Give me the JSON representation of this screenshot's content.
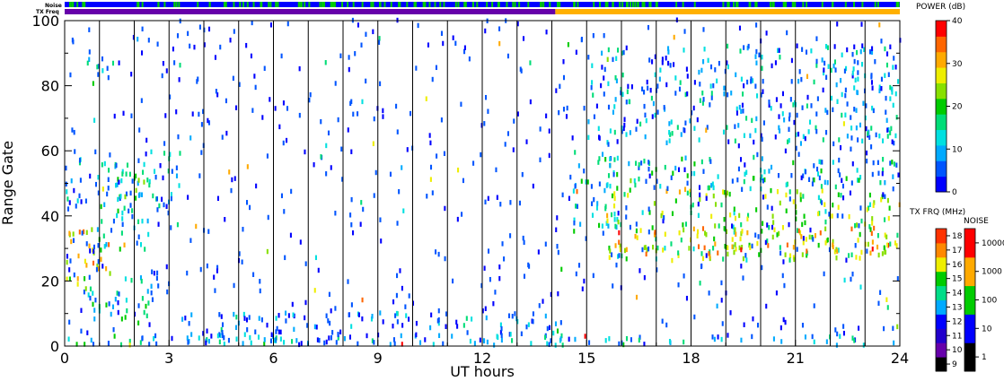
{
  "chart_data": {
    "type": "heatmap",
    "title": "",
    "xlabel": "UT hours",
    "ylabel": "Range Gate",
    "xlim": [
      0,
      24
    ],
    "ylim": [
      0,
      100
    ],
    "x_ticks": [
      0,
      3,
      6,
      9,
      12,
      15,
      18,
      21,
      24
    ],
    "y_ticks": [
      0,
      20,
      40,
      60,
      80,
      100
    ],
    "top_bars": [
      {
        "label": "Noise",
        "base_color": "#0000ff",
        "flecks_color": "#00cc00",
        "flecks_until_hour": 24
      },
      {
        "label": "TX Freq",
        "segments": [
          {
            "from": 0,
            "to": 14.1,
            "color": "#6600aa"
          },
          {
            "from": 14.1,
            "to": 24,
            "color": "#ffb000"
          }
        ]
      }
    ],
    "colorbars": [
      {
        "title": "POWER (dB)",
        "min": 0,
        "max": 40,
        "ticks": [
          "0",
          "10",
          "20",
          "30",
          "40"
        ],
        "colors": [
          "#0000ff",
          "#0055ff",
          "#00aaff",
          "#00e0e0",
          "#00dd77",
          "#00cc00",
          "#88e000",
          "#eeee00",
          "#ffaa00",
          "#ff6600",
          "#ff0000"
        ]
      },
      {
        "title": "TX FRQ (MHz)",
        "ticks": [
          "9",
          "10",
          "11",
          "12",
          "13",
          "14",
          "15",
          "16",
          "17",
          "18"
        ],
        "colors": [
          "#000000",
          "#6600aa",
          "#2200cc",
          "#0000ff",
          "#00aaff",
          "#00dd88",
          "#00cc00",
          "#eeee00",
          "#ff8800",
          "#ff3300"
        ]
      },
      {
        "title": "NOISE",
        "ticks": [
          "1",
          "10",
          "100",
          "1000",
          "10000"
        ],
        "colors": [
          "#000000",
          "#0000ff",
          "#00cc00",
          "#ffaa00",
          "#ff0000"
        ]
      }
    ],
    "echo_regions": [
      {
        "t0": 0.0,
        "t1": 1.3,
        "g0": 18,
        "g1": 36,
        "p": 28
      },
      {
        "t0": 0.0,
        "t1": 0.5,
        "g0": 40,
        "g1": 62,
        "p": 8
      },
      {
        "t0": 0.5,
        "t1": 1.2,
        "g0": 80,
        "g1": 90,
        "p": 10
      },
      {
        "t0": 0.9,
        "t1": 2.4,
        "g0": 28,
        "g1": 56,
        "p": 12
      },
      {
        "t0": 1.2,
        "t1": 2.3,
        "g0": 44,
        "g1": 56,
        "p": 18
      },
      {
        "t0": 0.5,
        "t1": 2.6,
        "g0": 8,
        "g1": 22,
        "p": 12
      },
      {
        "t0": 2.3,
        "t1": 3.3,
        "g0": 30,
        "g1": 60,
        "p": 8
      },
      {
        "t0": 14.6,
        "t1": 16.0,
        "g0": 36,
        "g1": 60,
        "p": 12
      },
      {
        "t0": 15.5,
        "t1": 24.0,
        "g0": 26,
        "g1": 48,
        "p": 22
      },
      {
        "t0": 15.8,
        "t1": 24.0,
        "g0": 28,
        "g1": 36,
        "p": 30
      },
      {
        "t0": 15.5,
        "t1": 24.0,
        "g0": 48,
        "g1": 58,
        "p": 12
      },
      {
        "t0": 15.0,
        "t1": 24.0,
        "g0": 62,
        "g1": 92,
        "p": 8
      },
      {
        "t0": 0.0,
        "t1": 24.0,
        "g0": 0,
        "g1": 3,
        "p": 10
      },
      {
        "t0": 3.0,
        "t1": 14.5,
        "g0": 0,
        "g1": 10,
        "p": 6
      }
    ]
  }
}
